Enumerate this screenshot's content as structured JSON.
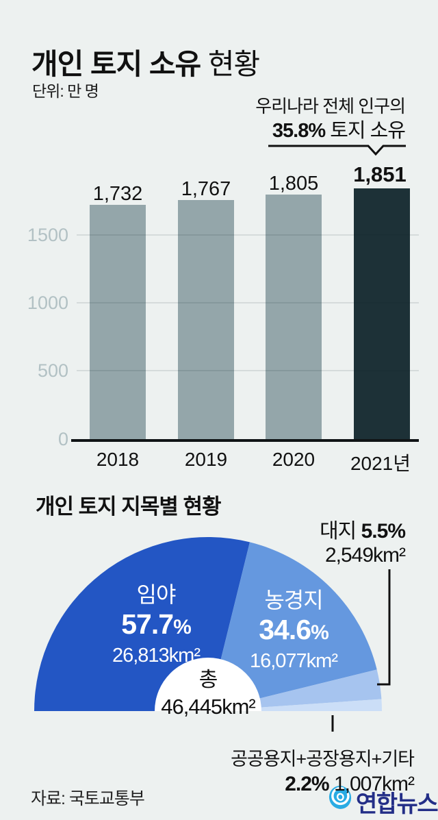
{
  "page": {
    "background": "#edf1f0"
  },
  "header": {
    "title_bold": "개인 토지 소유",
    "title_regular": " 현황",
    "unit_label": "단위: 만 명",
    "annotation": {
      "line1": "우리나라 전체 인구의",
      "pct": "35.8%",
      "rest": " 토지 소유"
    }
  },
  "bar_chart": {
    "value_labels": [
      "1,732",
      "1,767",
      "1,805",
      "1,851"
    ],
    "year_labels": [
      "2018",
      "2019",
      "2020",
      "2021년"
    ],
    "ytick_labels": [
      "1500",
      "1000",
      "500",
      "0"
    ],
    "bar_color": "#94a6aa",
    "highlight_color": "#1d3137"
  },
  "donut": {
    "title": "개인 토지 지목별 현황",
    "pct_sign": "%",
    "center": {
      "label": "총",
      "value": "46,445km²"
    },
    "segments": [
      {
        "name": "임야",
        "pct": "57.7",
        "area": "26,813km²",
        "color": "#2356c4"
      },
      {
        "name": "농경지",
        "pct": "34.6",
        "area": "16,077km²",
        "color": "#6598df"
      },
      {
        "name": "대지",
        "pct": "5.5%",
        "area": "2,549km²",
        "color": "#a6c4ef"
      },
      {
        "name": "공공용지+공장용지+기타",
        "pct": "2.2%",
        "area": "1,007km²",
        "color": "#cbdef7"
      }
    ]
  },
  "footer": {
    "source": "자료: 국토교통부",
    "logo_text": "연합뉴스",
    "logo_color": "#29abe3",
    "logo_text_color": "#232e87"
  },
  "chart_data": [
    {
      "type": "bar",
      "title": "개인 토지 소유 현황",
      "unit": "만 명",
      "categories": [
        "2018",
        "2019",
        "2020",
        "2021"
      ],
      "values": [
        1732,
        1767,
        1805,
        1851
      ],
      "ylim": [
        0,
        1900
      ],
      "yticks": [
        0,
        500,
        1000,
        1500
      ],
      "grid": true,
      "highlight_index": 3,
      "annotation": "우리나라 전체 인구의 35.8% 토지 소유"
    },
    {
      "type": "pie",
      "subtype": "semicircle-donut",
      "title": "개인 토지 지목별 현황",
      "labels": [
        "임야",
        "농경지",
        "대지",
        "공공용지+공장용지+기타"
      ],
      "values_pct": [
        57.7,
        34.6,
        5.5,
        2.2
      ],
      "areas_km2": [
        26813,
        16077,
        2549,
        1007
      ],
      "total_km2": 46445,
      "colors": [
        "#2356c4",
        "#6598df",
        "#a6c4ef",
        "#cbdef7"
      ]
    }
  ]
}
